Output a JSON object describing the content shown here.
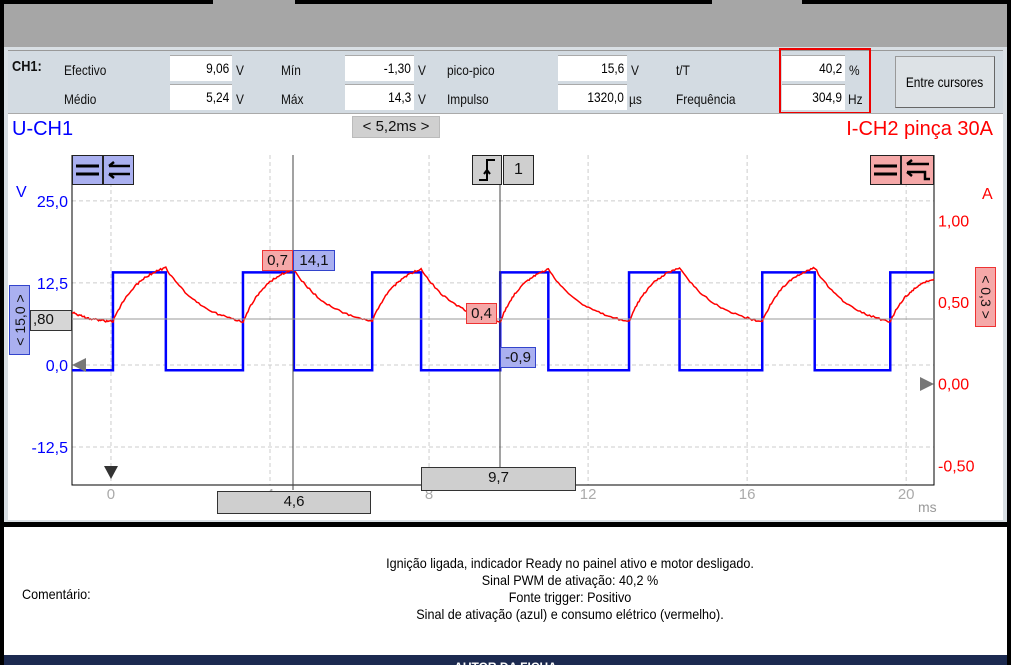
{
  "measurements": {
    "channel": "CH1:",
    "efectivo": {
      "label": "Efectivo",
      "value": "9,06",
      "unit": "V"
    },
    "medio": {
      "label": "Médio",
      "value": "5,24",
      "unit": "V"
    },
    "min": {
      "label": "Mín",
      "value": "-1,30",
      "unit": "V"
    },
    "max": {
      "label": "Máx",
      "value": "14,3",
      "unit": "V"
    },
    "picopico": {
      "label": "pico-pico",
      "value": "15,6",
      "unit": "V"
    },
    "impulso": {
      "label": "Impulso",
      "value": "1320,0",
      "unit": "µs"
    },
    "tT": {
      "label": "t/T",
      "value": "40,2",
      "unit": "%"
    },
    "frequencia": {
      "label": "Frequência",
      "value": "304,9",
      "unit": "Hz"
    },
    "between_cursors_button": "Entre cursores"
  },
  "plot_header": {
    "ch1": "U-CH1",
    "timebase": "< 5,2ms >",
    "ch2": "I-CH2 pinça 30A"
  },
  "controls": {
    "left_scale": "< 15,0 >",
    "right_scale": "< 0,3 >",
    "h_cursor": ",80",
    "trigger_channel": "1"
  },
  "cursors": {
    "c1": {
      "time": "4,6",
      "ch2": "0,7",
      "ch1": "14,1"
    },
    "c2": {
      "time": "9,7",
      "ch2": "0,4",
      "ch1": "-0,9"
    }
  },
  "colors": {
    "ch1": "#0000ff",
    "ch2": "#ff0000",
    "highlight": "#e00000"
  },
  "chart_data": {
    "type": "line",
    "xlabel": "ms",
    "ylabel_left": "V",
    "ylabel_right": "A",
    "xlim": [
      -0.98,
      20.7
    ],
    "ylim_left": [
      -18.3,
      32
    ],
    "ylim_right": [
      -0.62,
      1.4
    ],
    "x_ticks": [
      "0",
      "4",
      "8",
      "12",
      "16",
      "20"
    ],
    "y_left_ticks": [
      "25,0",
      "12,5",
      "0,0",
      "-12,5"
    ],
    "y_right_ticks": [
      "1,00",
      "0,50",
      "0,00",
      "-0,50"
    ],
    "grid": true,
    "series": [
      {
        "name": "U-CH1",
        "axis": "left",
        "points": [
          [
            -0.98,
            -0.8
          ],
          [
            0.05,
            -0.8
          ],
          [
            0.05,
            14.1
          ],
          [
            1.38,
            14.1
          ],
          [
            1.38,
            -0.8
          ],
          [
            3.32,
            -0.8
          ],
          [
            3.32,
            14.1
          ],
          [
            4.6,
            14.1
          ],
          [
            4.6,
            -0.8
          ],
          [
            6.57,
            -0.8
          ],
          [
            6.57,
            14.1
          ],
          [
            7.8,
            14.1
          ],
          [
            7.8,
            -0.8
          ],
          [
            9.79,
            -0.8
          ],
          [
            9.79,
            14.1
          ],
          [
            11.0,
            14.1
          ],
          [
            11.0,
            -0.8
          ],
          [
            13.03,
            -0.8
          ],
          [
            13.03,
            14.1
          ],
          [
            14.3,
            14.1
          ],
          [
            14.3,
            -0.8
          ],
          [
            16.38,
            -0.8
          ],
          [
            16.38,
            14.1
          ],
          [
            17.7,
            14.1
          ],
          [
            17.7,
            -0.8
          ],
          [
            19.6,
            -0.8
          ],
          [
            19.6,
            14.1
          ],
          [
            20.7,
            14.1
          ]
        ]
      },
      {
        "name": "I-CH2 pinça 30A",
        "axis": "right",
        "points": [
          [
            -0.98,
            0.44
          ],
          [
            0.05,
            0.38
          ],
          [
            1.38,
            0.71
          ],
          [
            3.32,
            0.38
          ],
          [
            4.6,
            0.7
          ],
          [
            6.57,
            0.38
          ],
          [
            7.8,
            0.7
          ],
          [
            9.79,
            0.38
          ],
          [
            11.0,
            0.7
          ],
          [
            13.03,
            0.38
          ],
          [
            14.3,
            0.71
          ],
          [
            16.38,
            0.38
          ],
          [
            17.7,
            0.71
          ],
          [
            19.6,
            0.38
          ],
          [
            20.7,
            0.64
          ]
        ]
      }
    ]
  },
  "comment": {
    "label": "Comentário:",
    "lines": [
      "Ignição ligada, indicador Ready no painel ativo e motor desligado.",
      "Sinal PWM de ativação: 40,2 %",
      "Fonte trigger: Positivo",
      "Sinal de ativação (azul) e consumo elétrico (vermelho)."
    ]
  },
  "footer": "AUTOR DA FICHA"
}
